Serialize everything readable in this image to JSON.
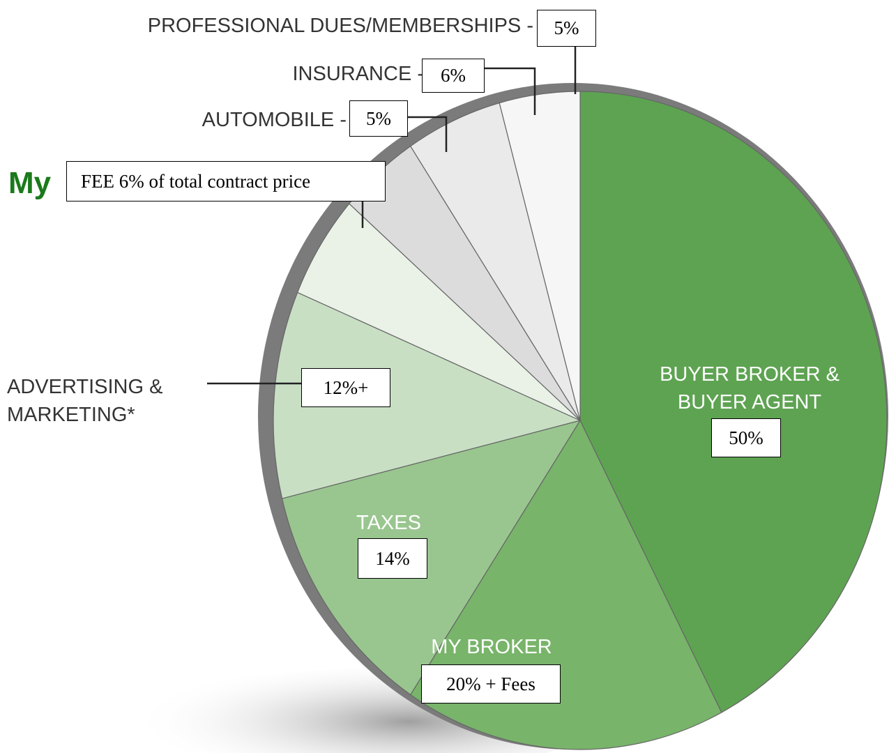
{
  "chart_data": {
    "type": "pie",
    "categories": [
      "BUYER BROKER & BUYER AGENT",
      "MY BROKER",
      "TAXES",
      "ADVERTISING & MARKETING*",
      "My",
      "AUTOMOBILE -",
      "INSURANCE -",
      "PROFESSIONAL DUES/MEMBERSHIPS -"
    ],
    "values": [
      50,
      20,
      14,
      12,
      6,
      5,
      6,
      5
    ],
    "value_labels": [
      "50%",
      "20% + Fees",
      "14%",
      "12%+",
      "FEE 6% of total contract price",
      "5%",
      "6%",
      "5%"
    ],
    "colors": [
      "#5ea352",
      "#78b46a",
      "#99c68f",
      "#c8dfc4",
      "#eaf2e8",
      "#dcdcdc",
      "#eaeaea",
      "#f6f6f6"
    ]
  }
}
